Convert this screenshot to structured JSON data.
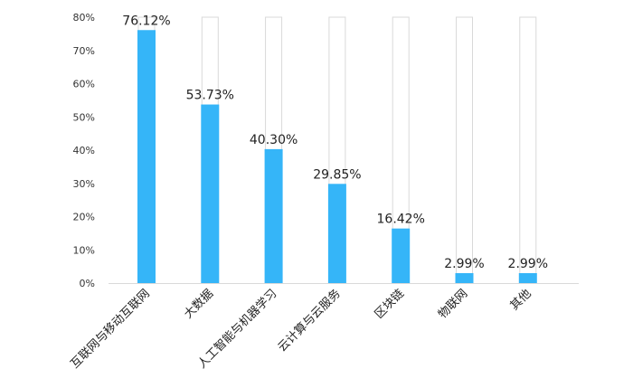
{
  "chart_data": {
    "type": "bar",
    "title": "",
    "xlabel": "",
    "ylabel": "",
    "categories": [
      "互联网与移动互联网",
      "大数据",
      "人工智能与机器学习",
      "云计算与云服务",
      "区块链",
      "物联网",
      "其他"
    ],
    "values": [
      76.12,
      53.73,
      40.3,
      29.85,
      16.42,
      2.99,
      2.99
    ],
    "data_labels": [
      "76.12%",
      "53.73%",
      "40.30%",
      "29.85%",
      "16.42%",
      "2.99%",
      "2.99%"
    ],
    "ylim": [
      0,
      80
    ],
    "yticks": [
      0,
      10,
      20,
      30,
      40,
      50,
      60,
      70,
      80
    ],
    "ytick_labels": [
      "0%",
      "10%",
      "20%",
      "30%",
      "40%",
      "50%",
      "60%",
      "70%",
      "80%"
    ],
    "grid": false,
    "legend": "none",
    "background_bars": true,
    "colors": {
      "bar": "#35B5F8",
      "background_bar_stroke": "#D9D9D9",
      "axis": "#D9D9D9",
      "text": "#222222"
    }
  }
}
